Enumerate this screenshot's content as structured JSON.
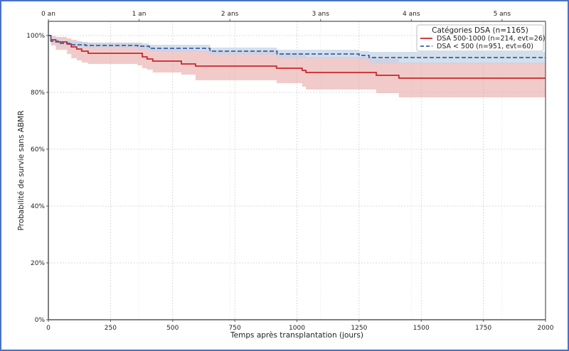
{
  "chart_data": {
    "type": "line",
    "subtype": "kaplan-meier-step",
    "title": "",
    "xlabel": "Temps après transplantation (jours)",
    "ylabel": "Probabilité de survie sans ABMR",
    "xlim": [
      0,
      2000
    ],
    "ylim": [
      0,
      100
    ],
    "grid": true,
    "x_ticks": [
      0,
      250,
      500,
      750,
      1000,
      1250,
      1500,
      1750,
      2000
    ],
    "x_tick_labels": [
      "0",
      "250",
      "500",
      "750",
      "1000",
      "1250",
      "1500",
      "1750",
      "2000"
    ],
    "y_ticks": [
      0,
      20,
      40,
      60,
      80,
      100
    ],
    "y_tick_labels": [
      "0%",
      "20%",
      "40%",
      "60%",
      "80%",
      "100%"
    ],
    "top_axis": {
      "ticks_days": [
        0,
        365,
        730,
        1095,
        1460,
        1825
      ],
      "labels": [
        "0 an",
        "1 an",
        "2 ans",
        "3 ans",
        "4 ans",
        "5 ans"
      ]
    },
    "legend": {
      "title": "Catégories DSA (n=1165)",
      "placement": "top-right"
    },
    "series": [
      {
        "name": "DSA 500-1000 (n=214, evt=26)",
        "color": "#c8282a",
        "band_color": "#e8a9a6",
        "style": "solid",
        "x": [
          0,
          10,
          30,
          75,
          92,
          114,
          134,
          160,
          358,
          378,
          397,
          420,
          535,
          592,
          918,
          1021,
          1036,
          1319,
          1410,
          2000
        ],
        "y": [
          100,
          98.5,
          97.75,
          97,
          96,
          95.25,
          94.5,
          93.75,
          93.75,
          92.5,
          91.75,
          91,
          90,
          89.25,
          88.5,
          87.75,
          87,
          86,
          85,
          85
        ],
        "ci_lower": [
          100,
          96.5,
          95,
          93.5,
          92,
          91.25,
          90.5,
          90,
          89.5,
          88.5,
          88,
          87,
          86.25,
          84.25,
          83.25,
          82,
          81,
          79.75,
          78.25,
          78.25
        ],
        "ci_upper": [
          100,
          99.8,
          99.5,
          99,
          98.5,
          98,
          97.75,
          97.5,
          97.5,
          96.75,
          96,
          95.5,
          95,
          94.75,
          94,
          93.25,
          92.5,
          91.75,
          90.5,
          90.5
        ]
      },
      {
        "name": "DSA < 500 (n=951, evt=60)",
        "color": "#3a5fa8",
        "band_color": "#c6d4e6",
        "style": "dashed",
        "x": [
          0,
          10,
          40,
          92,
          150,
          360,
          406,
          650,
          920,
          1250,
          1290,
          2000
        ],
        "y": [
          100,
          98,
          97.25,
          96.75,
          96.5,
          96.25,
          95.5,
          94.5,
          93.5,
          93,
          92.25,
          92.25
        ],
        "ci_lower": [
          100,
          97,
          96.25,
          95.75,
          95.5,
          95,
          94.25,
          93.25,
          92,
          91.5,
          90,
          90
        ],
        "ci_upper": [
          100,
          99,
          98.25,
          97.75,
          97.5,
          97.25,
          96.75,
          95.75,
          95,
          94.5,
          94.25,
          94.25
        ]
      }
    ]
  }
}
